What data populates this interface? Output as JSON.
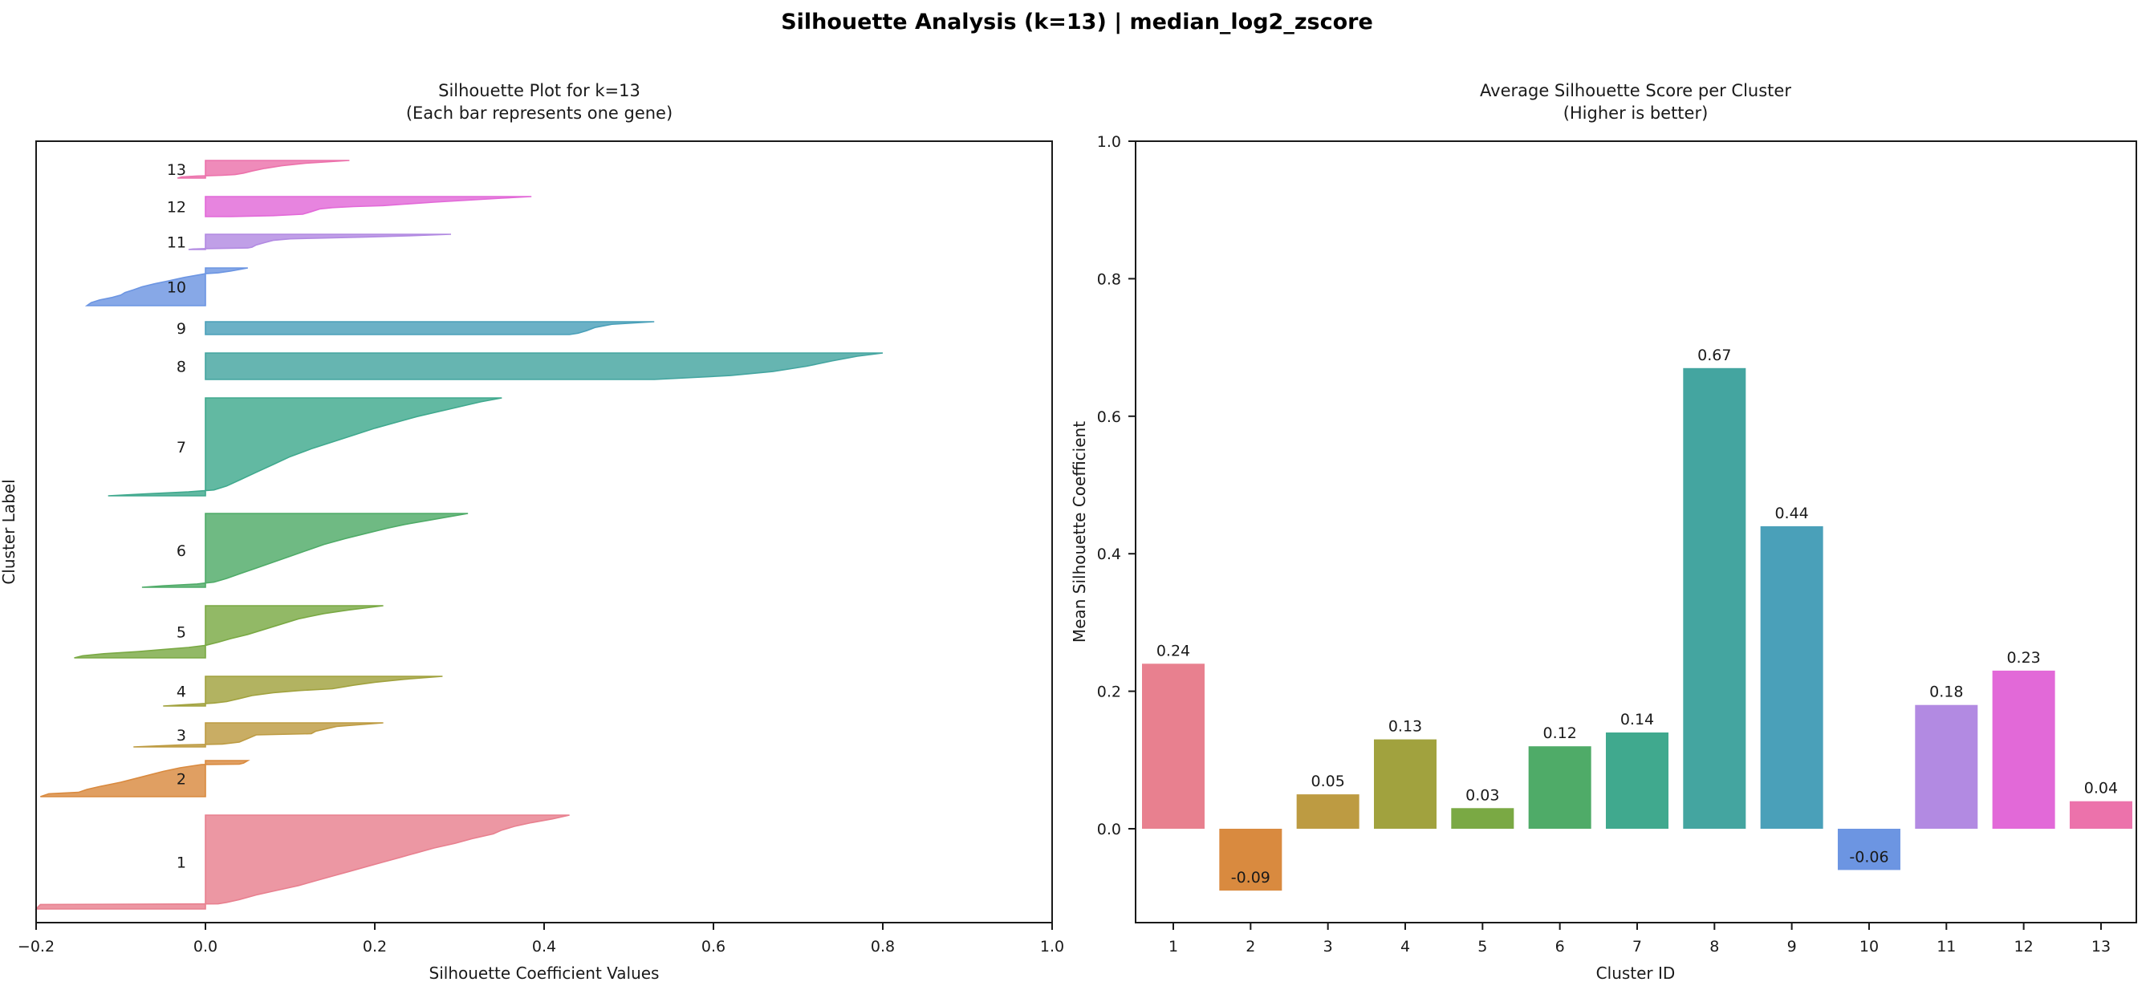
{
  "title": "Silhouette Analysis (k=13) | median_log2_zscore",
  "palette": [
    "#e8808f",
    "#d98a3f",
    "#bd9b42",
    "#a1a23e",
    "#7aa944",
    "#4fab68",
    "#40a98e",
    "#44a5a0",
    "#4aa0b9",
    "#6c95e2",
    "#b28ae2",
    "#e269d8",
    "#ec72ab"
  ],
  "chart_data": [
    {
      "type": "area",
      "subtype": "silhouette-profile-plot",
      "title_line1": "Silhouette Plot for k=13",
      "title_line2": "(Each bar represents one gene)",
      "xlabel": "Silhouette Coefficient Values",
      "ylabel": "Cluster Label",
      "xlim": [
        -0.2,
        1.0
      ],
      "xticks": [
        -0.2,
        0.0,
        0.2,
        0.4,
        0.6,
        0.8,
        1.0
      ],
      "xtick_labels": [
        "−0.2",
        "0.0",
        "0.2",
        "0.4",
        "0.6",
        "0.8",
        "1.0"
      ],
      "grid": false,
      "clusters": [
        {
          "label": "1",
          "color": "#e8808f",
          "min": -0.2,
          "max": 0.43,
          "band": [
            1016,
            1133
          ],
          "profile": [
            [
              0,
              0.43
            ],
            [
              0.04,
              0.41
            ],
            [
              0.08,
              0.385
            ],
            [
              0.12,
              0.365
            ],
            [
              0.16,
              0.35
            ],
            [
              0.2,
              0.34
            ],
            [
              0.25,
              0.315
            ],
            [
              0.3,
              0.295
            ],
            [
              0.35,
              0.27
            ],
            [
              0.4,
              0.25
            ],
            [
              0.45,
              0.23
            ],
            [
              0.5,
              0.21
            ],
            [
              0.55,
              0.19
            ],
            [
              0.6,
              0.17
            ],
            [
              0.65,
              0.15
            ],
            [
              0.7,
              0.13
            ],
            [
              0.75,
              0.11
            ],
            [
              0.8,
              0.085
            ],
            [
              0.85,
              0.06
            ],
            [
              0.9,
              0.04
            ],
            [
              0.93,
              0.025
            ],
            [
              0.945,
              0.015
            ],
            [
              0.952,
              -0.195
            ],
            [
              1,
              -0.2
            ]
          ]
        },
        {
          "label": "2",
          "color": "#d98a3f",
          "min": -0.195,
          "max": 0.05,
          "band": [
            948,
            993
          ],
          "profile": [
            [
              0,
              0.05
            ],
            [
              0.07,
              0.045
            ],
            [
              0.1,
              0.04
            ],
            [
              0.11,
              -0.005
            ],
            [
              0.2,
              -0.03
            ],
            [
              0.3,
              -0.05
            ],
            [
              0.45,
              -0.075
            ],
            [
              0.6,
              -0.1
            ],
            [
              0.72,
              -0.125
            ],
            [
              0.8,
              -0.14
            ],
            [
              0.88,
              -0.15
            ],
            [
              0.92,
              -0.185
            ],
            [
              1,
              -0.195
            ]
          ]
        },
        {
          "label": "3",
          "color": "#bd9b42",
          "min": -0.085,
          "max": 0.21,
          "band": [
            901,
            931
          ],
          "profile": [
            [
              0,
              0.21
            ],
            [
              0.15,
              0.155
            ],
            [
              0.35,
              0.13
            ],
            [
              0.45,
              0.125
            ],
            [
              0.5,
              0.06
            ],
            [
              0.65,
              0.05
            ],
            [
              0.8,
              0.04
            ],
            [
              0.88,
              0.02
            ],
            [
              0.92,
              -0.03
            ],
            [
              1,
              -0.085
            ]
          ]
        },
        {
          "label": "4",
          "color": "#a1a23e",
          "min": -0.05,
          "max": 0.28,
          "band": [
            843,
            880
          ],
          "profile": [
            [
              0,
              0.28
            ],
            [
              0.1,
              0.235
            ],
            [
              0.2,
              0.2
            ],
            [
              0.3,
              0.175
            ],
            [
              0.42,
              0.15
            ],
            [
              0.48,
              0.11
            ],
            [
              0.55,
              0.08
            ],
            [
              0.65,
              0.055
            ],
            [
              0.75,
              0.04
            ],
            [
              0.85,
              0.025
            ],
            [
              0.9,
              0.01
            ],
            [
              0.94,
              -0.015
            ],
            [
              1,
              -0.05
            ]
          ]
        },
        {
          "label": "5",
          "color": "#7aa944",
          "min": -0.155,
          "max": 0.21,
          "band": [
            755,
            820
          ],
          "profile": [
            [
              0,
              0.21
            ],
            [
              0.08,
              0.17
            ],
            [
              0.15,
              0.14
            ],
            [
              0.25,
              0.11
            ],
            [
              0.35,
              0.09
            ],
            [
              0.45,
              0.07
            ],
            [
              0.55,
              0.05
            ],
            [
              0.63,
              0.03
            ],
            [
              0.7,
              0.015
            ],
            [
              0.76,
              0.0
            ],
            [
              0.8,
              -0.02
            ],
            [
              0.84,
              -0.05
            ],
            [
              0.88,
              -0.08
            ],
            [
              0.92,
              -0.12
            ],
            [
              0.96,
              -0.145
            ],
            [
              1,
              -0.155
            ]
          ]
        },
        {
          "label": "6",
          "color": "#4fab68",
          "min": -0.075,
          "max": 0.31,
          "band": [
            640,
            732
          ],
          "profile": [
            [
              0,
              0.31
            ],
            [
              0.05,
              0.285
            ],
            [
              0.1,
              0.26
            ],
            [
              0.15,
              0.235
            ],
            [
              0.2,
              0.215
            ],
            [
              0.27,
              0.19
            ],
            [
              0.34,
              0.165
            ],
            [
              0.42,
              0.14
            ],
            [
              0.5,
              0.12
            ],
            [
              0.58,
              0.1
            ],
            [
              0.66,
              0.08
            ],
            [
              0.74,
              0.06
            ],
            [
              0.82,
              0.04
            ],
            [
              0.88,
              0.025
            ],
            [
              0.93,
              0.01
            ],
            [
              0.955,
              -0.01
            ],
            [
              0.98,
              -0.05
            ],
            [
              1,
              -0.075
            ]
          ]
        },
        {
          "label": "7",
          "color": "#40a98e",
          "min": -0.115,
          "max": 0.35,
          "band": [
            496,
            618
          ],
          "profile": [
            [
              0,
              0.35
            ],
            [
              0.04,
              0.325
            ],
            [
              0.09,
              0.3
            ],
            [
              0.14,
              0.275
            ],
            [
              0.19,
              0.25
            ],
            [
              0.25,
              0.225
            ],
            [
              0.31,
              0.2
            ],
            [
              0.38,
              0.175
            ],
            [
              0.45,
              0.15
            ],
            [
              0.52,
              0.125
            ],
            [
              0.6,
              0.1
            ],
            [
              0.68,
              0.08
            ],
            [
              0.76,
              0.06
            ],
            [
              0.84,
              0.04
            ],
            [
              0.9,
              0.025
            ],
            [
              0.94,
              0.01
            ],
            [
              0.96,
              -0.02
            ],
            [
              0.98,
              -0.07
            ],
            [
              1,
              -0.115
            ]
          ]
        },
        {
          "label": "8",
          "color": "#44a5a0",
          "min": 0.53,
          "max": 0.8,
          "band": [
            440,
            473
          ],
          "profile": [
            [
              0,
              0.8
            ],
            [
              0.12,
              0.77
            ],
            [
              0.3,
              0.74
            ],
            [
              0.5,
              0.71
            ],
            [
              0.7,
              0.67
            ],
            [
              0.85,
              0.62
            ],
            [
              1,
              0.53
            ]
          ]
        },
        {
          "label": "9",
          "color": "#4aa0b9",
          "min": 0.43,
          "max": 0.53,
          "band": [
            401,
            417
          ],
          "profile": [
            [
              0,
              0.53
            ],
            [
              0.2,
              0.48
            ],
            [
              0.45,
              0.46
            ],
            [
              0.7,
              0.45
            ],
            [
              0.9,
              0.44
            ],
            [
              1,
              0.43
            ]
          ]
        },
        {
          "label": "10",
          "color": "#6c95e2",
          "min": -0.14,
          "max": 0.05,
          "band": [
            334,
            381
          ],
          "profile": [
            [
              0,
              0.05
            ],
            [
              0.08,
              0.03
            ],
            [
              0.13,
              0.015
            ],
            [
              0.15,
              0.0
            ],
            [
              0.25,
              -0.025
            ],
            [
              0.35,
              -0.045
            ],
            [
              0.42,
              -0.06
            ],
            [
              0.5,
              -0.075
            ],
            [
              0.58,
              -0.085
            ],
            [
              0.65,
              -0.095
            ],
            [
              0.72,
              -0.1
            ],
            [
              0.78,
              -0.11
            ],
            [
              0.85,
              -0.125
            ],
            [
              0.92,
              -0.135
            ],
            [
              1,
              -0.14
            ]
          ]
        },
        {
          "label": "11",
          "color": "#b28ae2",
          "min": -0.02,
          "max": 0.29,
          "band": [
            292,
            311
          ],
          "profile": [
            [
              0,
              0.29
            ],
            [
              0.1,
              0.24
            ],
            [
              0.18,
              0.19
            ],
            [
              0.25,
              0.135
            ],
            [
              0.3,
              0.1
            ],
            [
              0.4,
              0.08
            ],
            [
              0.55,
              0.07
            ],
            [
              0.7,
              0.06
            ],
            [
              0.85,
              0.055
            ],
            [
              0.9,
              0.05
            ],
            [
              0.94,
              0.0
            ],
            [
              0.97,
              -0.015
            ],
            [
              1,
              -0.02
            ]
          ]
        },
        {
          "label": "12",
          "color": "#e269d8",
          "min": 0.03,
          "max": 0.385,
          "band": [
            245,
            270
          ],
          "profile": [
            [
              0,
              0.385
            ],
            [
              0.08,
              0.35
            ],
            [
              0.18,
              0.31
            ],
            [
              0.28,
              0.27
            ],
            [
              0.38,
              0.235
            ],
            [
              0.45,
              0.21
            ],
            [
              0.5,
              0.175
            ],
            [
              0.55,
              0.15
            ],
            [
              0.62,
              0.135
            ],
            [
              0.75,
              0.125
            ],
            [
              0.88,
              0.115
            ],
            [
              0.95,
              0.08
            ],
            [
              1,
              0.03
            ]
          ]
        },
        {
          "label": "13",
          "color": "#ec72ab",
          "min": -0.033,
          "max": 0.17,
          "band": [
            200,
            222
          ],
          "profile": [
            [
              0,
              0.17
            ],
            [
              0.15,
              0.12
            ],
            [
              0.3,
              0.09
            ],
            [
              0.45,
              0.07
            ],
            [
              0.6,
              0.055
            ],
            [
              0.72,
              0.045
            ],
            [
              0.8,
              0.035
            ],
            [
              0.84,
              0.02
            ],
            [
              0.88,
              -0.01
            ],
            [
              0.93,
              -0.028
            ],
            [
              1,
              -0.033
            ]
          ]
        }
      ]
    },
    {
      "type": "bar",
      "title_line1": "Average Silhouette Score per Cluster",
      "title_line2": "(Higher is better)",
      "xlabel": "Cluster ID",
      "ylabel": "Mean Silhouette Coefficient",
      "categories": [
        "1",
        "2",
        "3",
        "4",
        "5",
        "6",
        "7",
        "8",
        "9",
        "10",
        "11",
        "12",
        "13"
      ],
      "values": [
        0.24,
        -0.09,
        0.05,
        0.13,
        0.03,
        0.12,
        0.14,
        0.67,
        0.44,
        -0.06,
        0.18,
        0.23,
        0.04
      ],
      "bar_labels": [
        "0.24",
        "-0.09",
        "0.05",
        "0.13",
        "0.03",
        "0.12",
        "0.14",
        "0.67",
        "0.44",
        "-0.06",
        "0.18",
        "0.23",
        "0.04"
      ],
      "colors": [
        "#e8808f",
        "#d98a3f",
        "#bd9b42",
        "#a1a23e",
        "#7aa944",
        "#4fab68",
        "#40a98e",
        "#44a5a0",
        "#4aa0b9",
        "#6c95e2",
        "#b28ae2",
        "#e269d8",
        "#ec72ab"
      ],
      "yticks": [
        0.0,
        0.2,
        0.4,
        0.6,
        0.8,
        1.0
      ],
      "ytick_labels": [
        "0.0",
        "0.2",
        "0.4",
        "0.6",
        "0.8",
        "1.0"
      ],
      "ylim": [
        -0.14,
        1.0
      ],
      "grid": false,
      "legend": null
    }
  ]
}
